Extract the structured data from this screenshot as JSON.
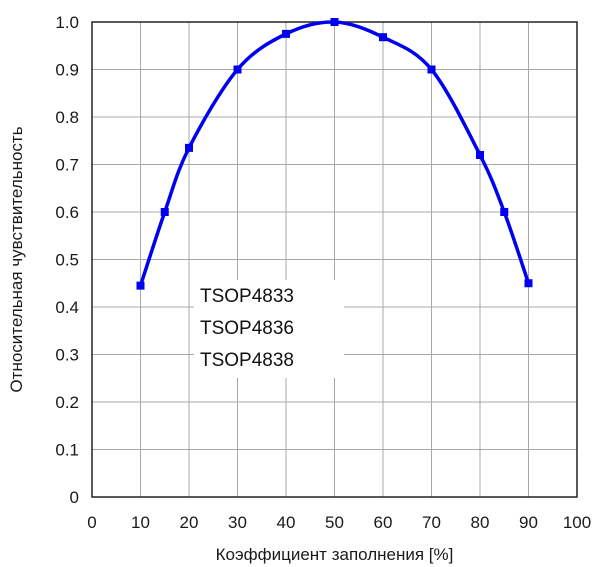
{
  "chart_data": {
    "type": "line",
    "title": "",
    "xlabel": "Коэффициент заполнения [%]",
    "ylabel": "Относительная чувствительность",
    "xlim": [
      0,
      100
    ],
    "ylim": [
      0,
      1.0
    ],
    "x_ticks": [
      "0",
      "10",
      "20",
      "30",
      "40",
      "50",
      "60",
      "70",
      "80",
      "90",
      "100"
    ],
    "y_ticks": [
      "0",
      "0.1",
      "0.2",
      "0.3",
      "0.4",
      "0.5",
      "0.6",
      "0.7",
      "0.8",
      "0.9",
      "1.0"
    ],
    "grid": true,
    "series": [
      {
        "x": [
          10,
          15,
          20,
          30,
          40,
          50,
          60,
          70,
          80,
          85,
          90
        ],
        "y": [
          0.445,
          0.6,
          0.735,
          0.9,
          0.975,
          1.0,
          0.968,
          0.9,
          0.72,
          0.6,
          0.45
        ],
        "color": "#0000ee"
      }
    ],
    "annotations": [
      "TSOP4833",
      "TSOP4836",
      "TSOP4838"
    ]
  }
}
